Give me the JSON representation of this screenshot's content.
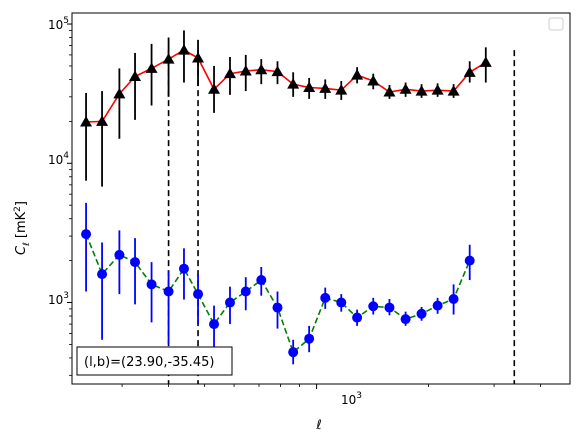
{
  "chart_data": {
    "type": "scatter",
    "xscale": "log",
    "yscale": "log",
    "xlabel": "ℓ",
    "ylabel": "C_ℓ [mK²]",
    "xlim": [
      220,
      4800
    ],
    "ylim": [
      260,
      120000
    ],
    "x_tick_labels": [
      "10^3"
    ],
    "y_tick_labels": [
      "10^3",
      "10^4",
      "10^5"
    ],
    "legend": "top-right",
    "legend_entries": [],
    "annotation": "(l,b)=(23.90,-35.45)",
    "vlines": [
      400,
      480,
      3400
    ],
    "series": [
      {
        "marker": "triangle",
        "marker_color": "#000000",
        "line_color": "#ff0000",
        "line_style": "solid",
        "errorbar_color": "#000000",
        "points": [
          {
            "x": 240,
            "y": 19800,
            "lo": 7500,
            "hi": 32000
          },
          {
            "x": 265,
            "y": 20000,
            "lo": 6800,
            "hi": 33000
          },
          {
            "x": 295,
            "y": 31500,
            "lo": 15000,
            "hi": 48000
          },
          {
            "x": 325,
            "y": 42000,
            "lo": 20500,
            "hi": 62000
          },
          {
            "x": 360,
            "y": 48000,
            "lo": 26000,
            "hi": 72000
          },
          {
            "x": 400,
            "y": 56000,
            "lo": 30000,
            "hi": 80000
          },
          {
            "x": 440,
            "y": 65000,
            "lo": 38000,
            "hi": 90000
          },
          {
            "x": 480,
            "y": 57000,
            "lo": 36000,
            "hi": 77000
          },
          {
            "x": 530,
            "y": 34000,
            "lo": 23000,
            "hi": 50000
          },
          {
            "x": 585,
            "y": 44000,
            "lo": 31000,
            "hi": 58000
          },
          {
            "x": 645,
            "y": 46000,
            "lo": 33000,
            "hi": 60000
          },
          {
            "x": 710,
            "y": 47000,
            "lo": 37000,
            "hi": 56000
          },
          {
            "x": 785,
            "y": 45500,
            "lo": 37000,
            "hi": 54000
          },
          {
            "x": 865,
            "y": 37000,
            "lo": 30000,
            "hi": 45000
          },
          {
            "x": 955,
            "y": 35000,
            "lo": 29000,
            "hi": 41000
          },
          {
            "x": 1055,
            "y": 34500,
            "lo": 29000,
            "hi": 40000
          },
          {
            "x": 1165,
            "y": 33500,
            "lo": 28500,
            "hi": 39000
          },
          {
            "x": 1285,
            "y": 43000,
            "lo": 37500,
            "hi": 49000
          },
          {
            "x": 1420,
            "y": 39000,
            "lo": 34000,
            "hi": 44000
          },
          {
            "x": 1570,
            "y": 32500,
            "lo": 29000,
            "hi": 36500
          },
          {
            "x": 1735,
            "y": 34000,
            "lo": 30000,
            "hi": 38000
          },
          {
            "x": 1915,
            "y": 33000,
            "lo": 29500,
            "hi": 37000
          },
          {
            "x": 2115,
            "y": 33500,
            "lo": 30000,
            "hi": 37500
          },
          {
            "x": 2335,
            "y": 33000,
            "lo": 29500,
            "hi": 37000
          },
          {
            "x": 2580,
            "y": 45000,
            "lo": 38000,
            "hi": 54000
          },
          {
            "x": 2850,
            "y": 53000,
            "lo": 38000,
            "hi": 68000
          }
        ]
      },
      {
        "marker": "circle",
        "marker_color": "#0000ff",
        "line_color": "#008000",
        "line_style": "dashed",
        "errorbar_color": "#0000ff",
        "points": [
          {
            "x": 240,
            "y": 3100,
            "lo": 1200,
            "hi": 5200
          },
          {
            "x": 265,
            "y": 1600,
            "lo": 540,
            "hi": 2700
          },
          {
            "x": 295,
            "y": 2200,
            "lo": 1150,
            "hi": 3300
          },
          {
            "x": 325,
            "y": 1950,
            "lo": 970,
            "hi": 2900
          },
          {
            "x": 360,
            "y": 1350,
            "lo": 720,
            "hi": 1950
          },
          {
            "x": 400,
            "y": 1200,
            "lo": 500,
            "hi": 1700
          },
          {
            "x": 440,
            "y": 1750,
            "lo": 1050,
            "hi": 2450
          },
          {
            "x": 480,
            "y": 1150,
            "lo": 700,
            "hi": 1600
          },
          {
            "x": 530,
            "y": 700,
            "lo": 460,
            "hi": 950
          },
          {
            "x": 585,
            "y": 1000,
            "lo": 700,
            "hi": 1300
          },
          {
            "x": 645,
            "y": 1200,
            "lo": 880,
            "hi": 1520
          },
          {
            "x": 710,
            "y": 1450,
            "lo": 1120,
            "hi": 1800
          },
          {
            "x": 785,
            "y": 920,
            "lo": 650,
            "hi": 1200
          },
          {
            "x": 865,
            "y": 440,
            "lo": 360,
            "hi": 540
          },
          {
            "x": 955,
            "y": 550,
            "lo": 440,
            "hi": 680
          },
          {
            "x": 1055,
            "y": 1080,
            "lo": 900,
            "hi": 1280
          },
          {
            "x": 1165,
            "y": 1000,
            "lo": 860,
            "hi": 1150
          },
          {
            "x": 1285,
            "y": 780,
            "lo": 680,
            "hi": 890
          },
          {
            "x": 1420,
            "y": 940,
            "lo": 820,
            "hi": 1080
          },
          {
            "x": 1570,
            "y": 920,
            "lo": 810,
            "hi": 1060
          },
          {
            "x": 1735,
            "y": 760,
            "lo": 680,
            "hi": 860
          },
          {
            "x": 1915,
            "y": 830,
            "lo": 740,
            "hi": 930
          },
          {
            "x": 2115,
            "y": 950,
            "lo": 830,
            "hi": 1080
          },
          {
            "x": 2335,
            "y": 1060,
            "lo": 820,
            "hi": 1350
          },
          {
            "x": 2580,
            "y": 2000,
            "lo": 1450,
            "hi": 2600
          }
        ]
      }
    ]
  },
  "colors": {
    "axes": "#000000",
    "background": "#ffffff",
    "vline": "#000000"
  }
}
